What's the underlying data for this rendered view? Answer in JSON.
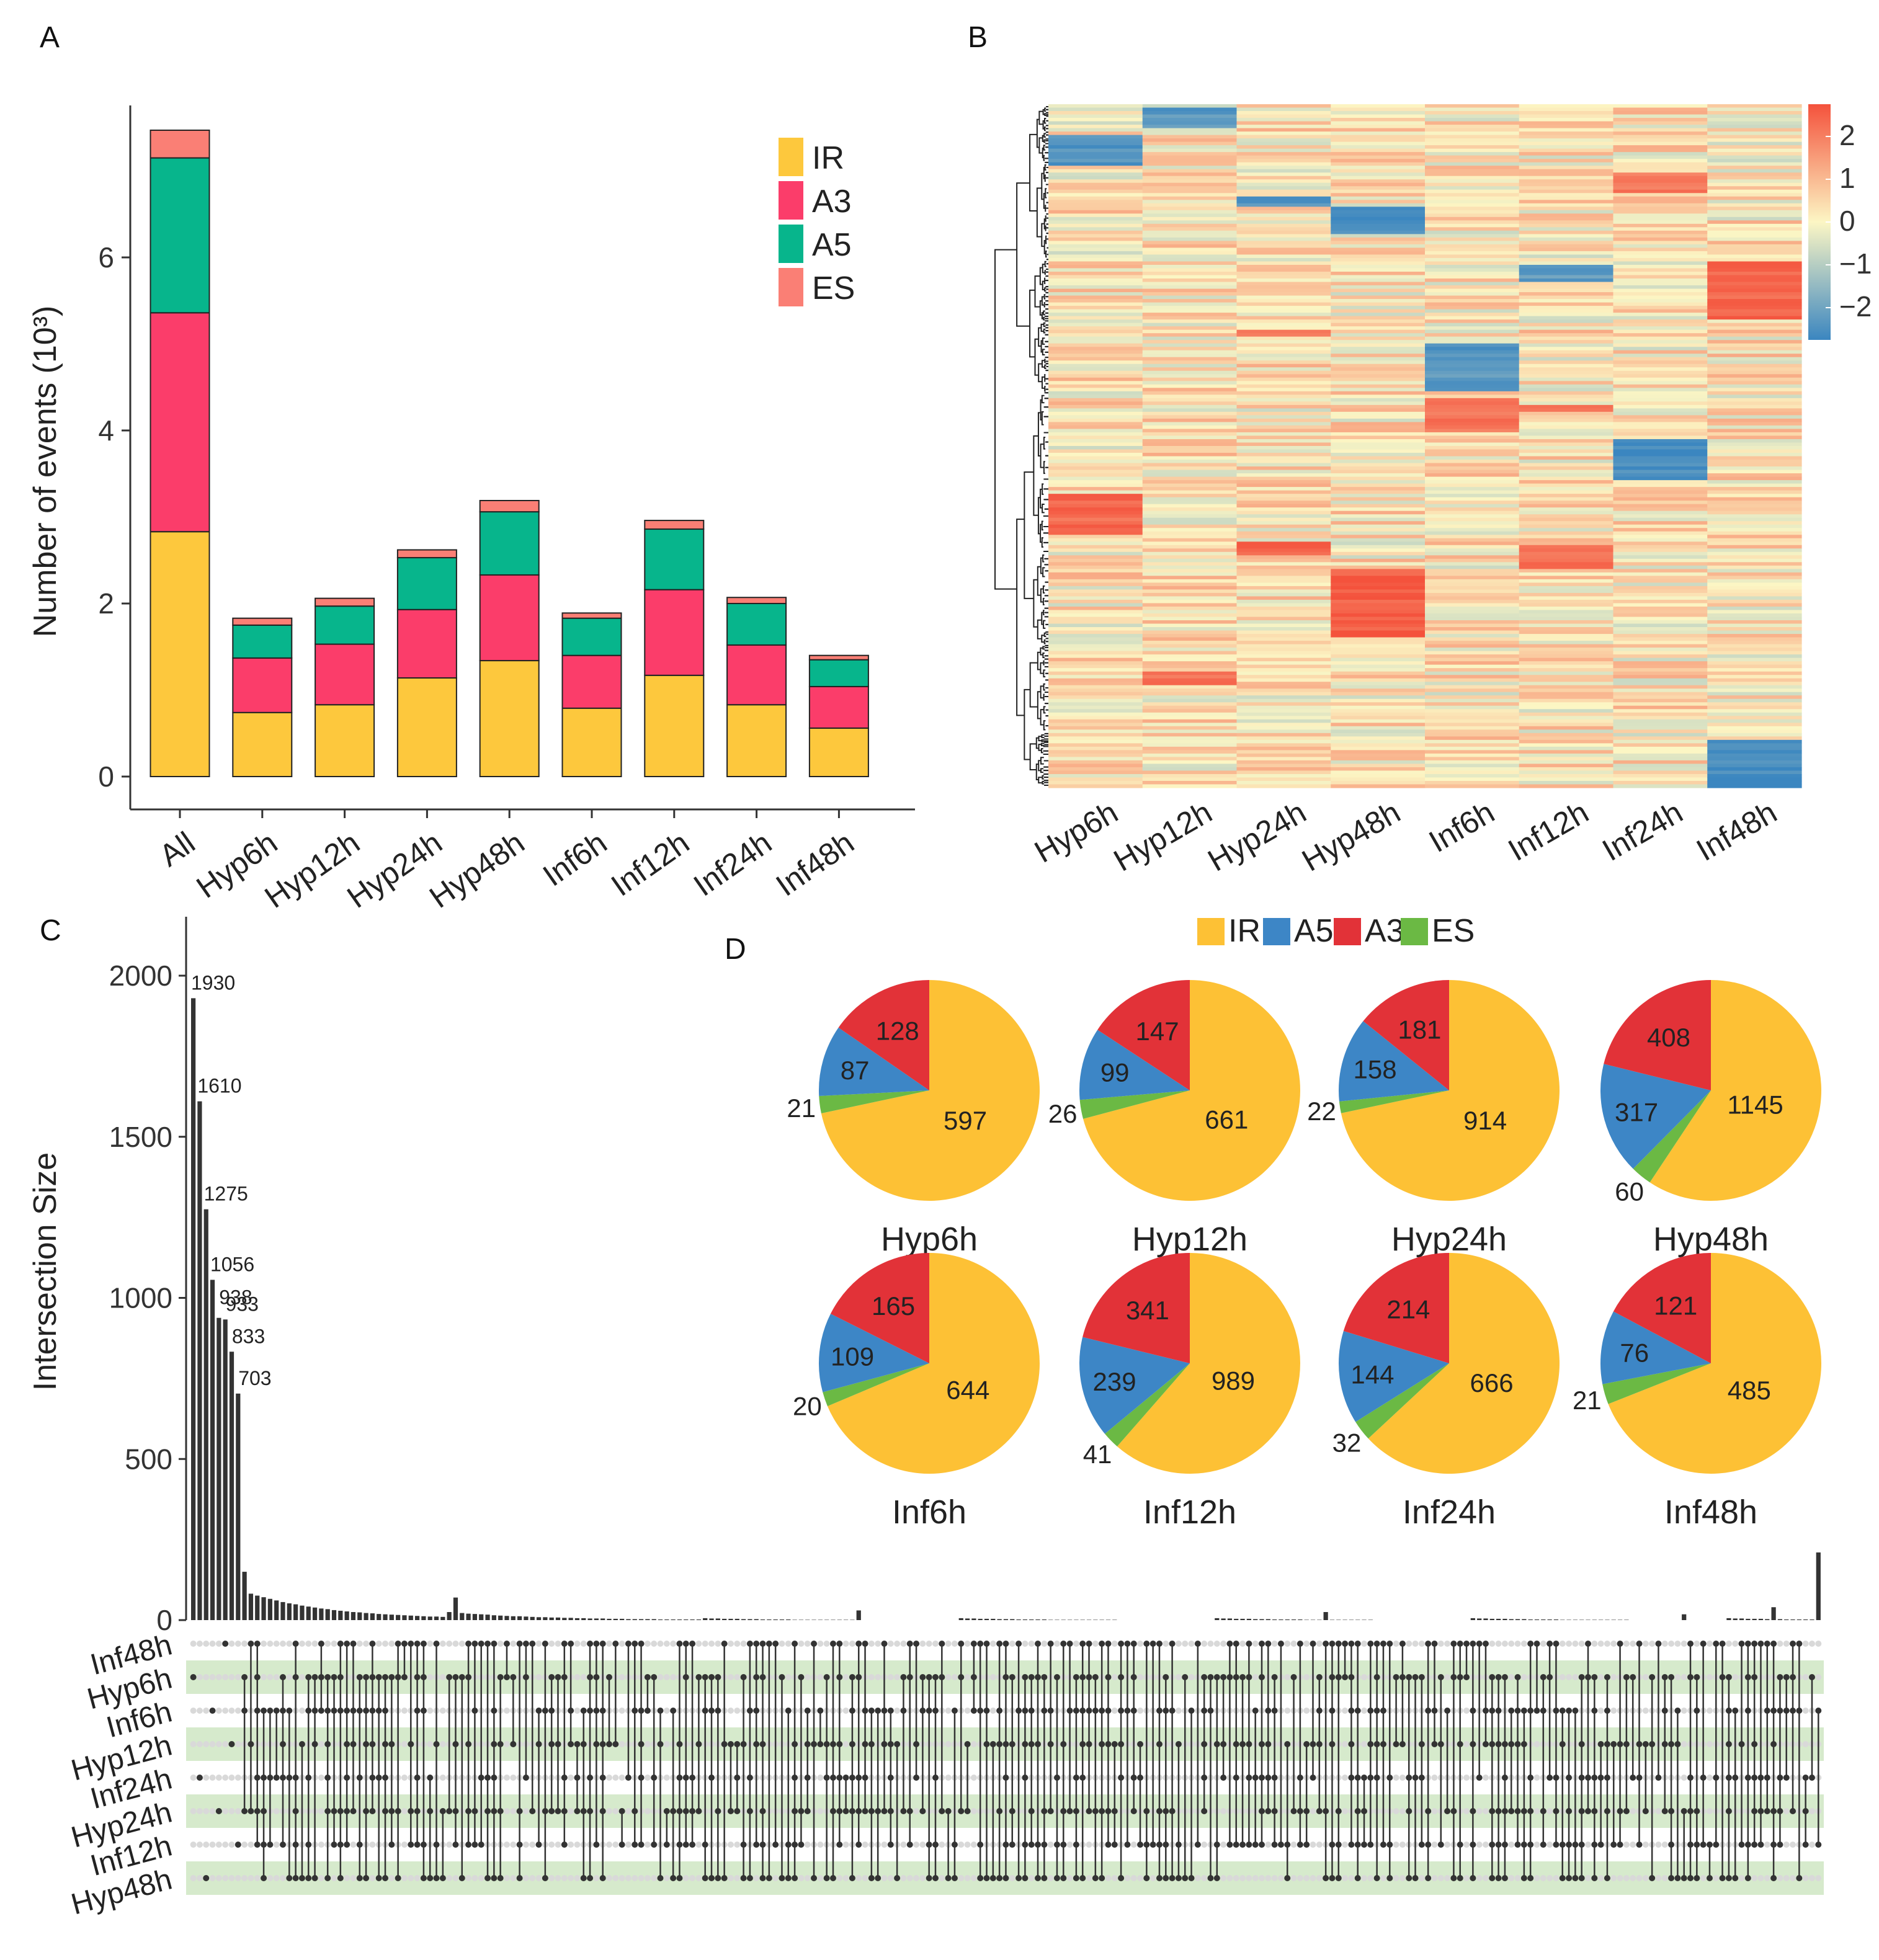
{
  "panels": {
    "a": "A",
    "b": "B",
    "c": "C",
    "d": "D"
  },
  "chart_data": [
    {
      "panel": "A",
      "type": "bar",
      "stacked": true,
      "title": "",
      "xlabel": "",
      "ylabel": "Number of events (10³)",
      "ylim": [
        0,
        7.5
      ],
      "yticks": [
        0,
        2,
        4,
        6
      ],
      "categories": [
        "All",
        "Hyp6h",
        "Hyp12h",
        "Hyp24h",
        "Hyp48h",
        "Inf6h",
        "Inf12h",
        "Inf24h",
        "Inf48h"
      ],
      "series": [
        {
          "name": "IR",
          "color": "#FDC83D",
          "values": [
            2.83,
            0.74,
            0.83,
            1.14,
            1.34,
            0.79,
            1.17,
            0.83,
            0.56
          ]
        },
        {
          "name": "A3",
          "color": "#FB3D6A",
          "values": [
            2.53,
            0.63,
            0.7,
            0.79,
            0.99,
            0.61,
            0.99,
            0.69,
            0.48
          ]
        },
        {
          "name": "A5",
          "color": "#07B58C",
          "values": [
            1.79,
            0.38,
            0.44,
            0.6,
            0.73,
            0.43,
            0.7,
            0.48,
            0.31
          ]
        },
        {
          "name": "ES",
          "color": "#FA7F75",
          "values": [
            0.32,
            0.08,
            0.09,
            0.09,
            0.13,
            0.06,
            0.1,
            0.07,
            0.05
          ]
        }
      ],
      "legend": [
        "IR",
        "A3",
        "A5",
        "ES"
      ],
      "legend_position": "top-right"
    },
    {
      "panel": "B",
      "type": "heatmap",
      "columns": [
        "Hyp6h",
        "Hyp12h",
        "Hyp24h",
        "Hyp48h",
        "Inf6h",
        "Inf12h",
        "Inf24h",
        "Inf48h"
      ],
      "colorbar_ticks": [
        2,
        1,
        0,
        -1,
        -2
      ],
      "colorbar_labels": [
        "2",
        "1",
        "0",
        "−1",
        "−2"
      ],
      "color_low": "#3B86C0",
      "color_mid": "#FCF6C4",
      "color_high": "#F4523C",
      "legend_position": "right"
    },
    {
      "panel": "C",
      "type": "bar",
      "subtype": "upset",
      "ylabel": "Intersection Size",
      "ylim": [
        0,
        2200
      ],
      "yticks": [
        0,
        500,
        1000,
        1500,
        2000
      ],
      "labeled_values": [
        1930,
        1610,
        1275,
        1056,
        938,
        933,
        833,
        703
      ],
      "sets": [
        "Inf48h",
        "Hyp6h",
        "Inf6h",
        "Hyp12h",
        "Inf24h",
        "Hyp24h",
        "Inf12h",
        "Hyp48h"
      ]
    },
    {
      "panel": "D",
      "type": "pie",
      "legend": [
        {
          "name": "IR",
          "color": "#FDC135"
        },
        {
          "name": "A5",
          "color": "#3D86C6"
        },
        {
          "name": "A3",
          "color": "#E23238"
        },
        {
          "name": "ES",
          "color": "#6BB944"
        }
      ],
      "pies": [
        {
          "name": "Hyp6h",
          "IR": 597,
          "A5": 87,
          "A3": 128,
          "ES": 21
        },
        {
          "name": "Hyp12h",
          "IR": 661,
          "A5": 99,
          "A3": 147,
          "ES": 26
        },
        {
          "name": "Hyp24h",
          "IR": 914,
          "A5": 158,
          "A3": 181,
          "ES": 22
        },
        {
          "name": "Hyp48h",
          "IR": 1145,
          "A5": 317,
          "A3": 408,
          "ES": 60
        },
        {
          "name": "Inf6h",
          "IR": 644,
          "A5": 109,
          "A3": 165,
          "ES": 20
        },
        {
          "name": "Inf12h",
          "IR": 989,
          "A5": 239,
          "A3": 341,
          "ES": 41
        },
        {
          "name": "Inf24h",
          "IR": 666,
          "A5": 144,
          "A3": 214,
          "ES": 32
        },
        {
          "name": "Inf48h",
          "IR": 485,
          "A5": 76,
          "A3": 121,
          "ES": 21
        }
      ]
    }
  ]
}
